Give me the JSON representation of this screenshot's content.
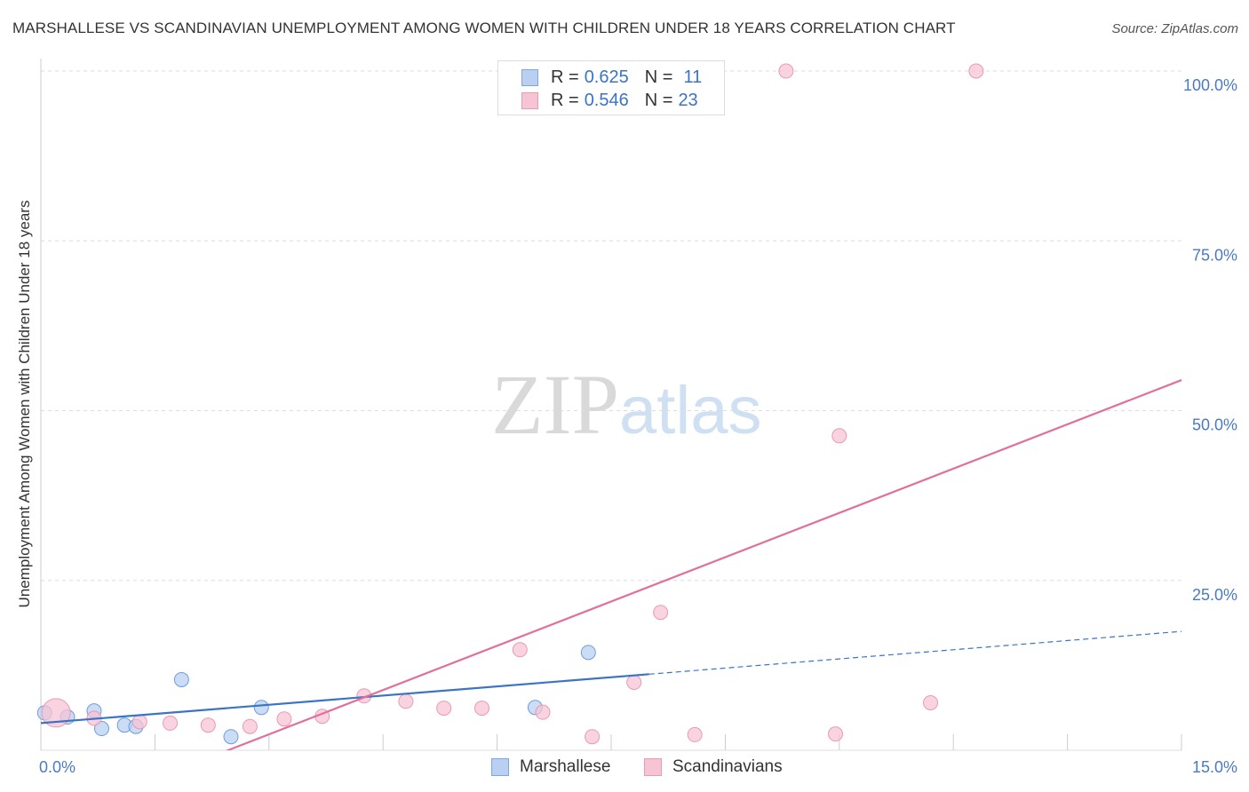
{
  "title": "MARSHALLESE VS SCANDINAVIAN UNEMPLOYMENT AMONG WOMEN WITH CHILDREN UNDER 18 YEARS CORRELATION CHART",
  "source": "Source: ZipAtlas.com",
  "watermark": {
    "zip": "ZIP",
    "atlas": "atlas"
  },
  "colors": {
    "blue": "#3a74c6",
    "blue_fill": "#b9d0f2",
    "pink": "#e0709a",
    "pink_fill": "#f7c4d4",
    "grid": "#dddddd",
    "axis_text": "#4a7ac4"
  },
  "legend": {
    "rows": [
      {
        "r_label": "R = ",
        "r_value": "0.625",
        "n_label": "N = ",
        "n_value": "11"
      },
      {
        "r_label": "R = ",
        "r_value": "0.546",
        "n_label": "N = ",
        "n_value": "23"
      }
    ]
  },
  "bottom_legend": {
    "series1": "Marshallese",
    "series2": "Scandinavians"
  },
  "chart_data": {
    "type": "scatter",
    "title": "MARSHALLESE VS SCANDINAVIAN UNEMPLOYMENT AMONG WOMEN WITH CHILDREN UNDER 18 YEARS CORRELATION CHART",
    "xlabel": "",
    "ylabel": "Unemployment Among Women with Children Under 18 years",
    "xlim": [
      0,
      15
    ],
    "ylim": [
      0,
      100
    ],
    "x_tick_labels": [
      "0.0%",
      "15.0%"
    ],
    "y_ticks": [
      25,
      50,
      75,
      100
    ],
    "y_tick_labels": [
      "25.0%",
      "50.0%",
      "75.0%",
      "100.0%"
    ],
    "grid": true,
    "series": [
      {
        "name": "Marshallese",
        "color": "#3a74c6",
        "points": [
          {
            "x": 0.05,
            "y": 5.5
          },
          {
            "x": 0.35,
            "y": 4.9
          },
          {
            "x": 0.7,
            "y": 5.8
          },
          {
            "x": 0.8,
            "y": 3.2
          },
          {
            "x": 1.1,
            "y": 3.7
          },
          {
            "x": 1.25,
            "y": 3.5
          },
          {
            "x": 1.85,
            "y": 10.4
          },
          {
            "x": 2.5,
            "y": 2.0
          },
          {
            "x": 2.9,
            "y": 6.3
          },
          {
            "x": 6.5,
            "y": 6.3
          },
          {
            "x": 7.2,
            "y": 14.4
          }
        ],
        "trend": {
          "x0": 0.0,
          "y0": 4.0,
          "x1": 8.0,
          "y1": 11.2,
          "dash_x1": 15.0,
          "dash_y1": 17.5
        }
      },
      {
        "name": "Scandinavians",
        "color": "#e0709a",
        "points": [
          {
            "x": 0.2,
            "y": 5.5
          },
          {
            "x": 0.7,
            "y": 4.7
          },
          {
            "x": 1.3,
            "y": 4.2
          },
          {
            "x": 1.7,
            "y": 4.0
          },
          {
            "x": 2.2,
            "y": 3.7
          },
          {
            "x": 2.75,
            "y": 3.5
          },
          {
            "x": 3.2,
            "y": 4.6
          },
          {
            "x": 3.7,
            "y": 5.0
          },
          {
            "x": 4.25,
            "y": 8.0
          },
          {
            "x": 4.8,
            "y": 7.2
          },
          {
            "x": 5.3,
            "y": 6.2
          },
          {
            "x": 5.8,
            "y": 6.2
          },
          {
            "x": 6.3,
            "y": 14.8
          },
          {
            "x": 6.6,
            "y": 5.6
          },
          {
            "x": 7.25,
            "y": 2.0
          },
          {
            "x": 7.8,
            "y": 10.0
          },
          {
            "x": 8.15,
            "y": 20.3
          },
          {
            "x": 8.6,
            "y": 2.3
          },
          {
            "x": 9.8,
            "y": 100.0
          },
          {
            "x": 10.5,
            "y": 46.3
          },
          {
            "x": 10.45,
            "y": 2.4
          },
          {
            "x": 11.7,
            "y": 7.0
          },
          {
            "x": 12.3,
            "y": 100.0
          }
        ],
        "trend": {
          "x0": 2.0,
          "y0": -2.0,
          "x1": 15.0,
          "y1": 54.5
        }
      }
    ]
  }
}
